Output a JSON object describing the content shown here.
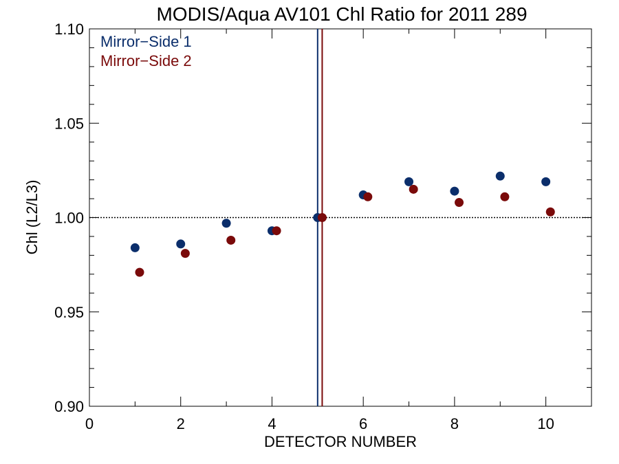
{
  "chart_data": {
    "type": "scatter",
    "title": "MODIS/Aqua AV101 Chl Ratio for 2011 289",
    "xlabel": "DETECTOR NUMBER",
    "ylabel": "Chl (L2/L3)",
    "xlim": [
      0,
      11
    ],
    "ylim": [
      0.9,
      1.1
    ],
    "xticks": [
      0,
      2,
      4,
      6,
      8,
      10
    ],
    "xtick_labels": [
      "0",
      "2",
      "4",
      "6",
      "8",
      "10"
    ],
    "yticks": [
      0.9,
      0.95,
      1.0,
      1.05,
      1.1
    ],
    "ytick_labels": [
      "0.90",
      "0.95",
      "1.00",
      "1.05",
      "1.10"
    ],
    "reference_line_y": 1.0,
    "legend_placement": "top-left",
    "series": [
      {
        "name": "Mirror−Side 1",
        "color": "#0b2e6b",
        "x": [
          1,
          2,
          3,
          4,
          5,
          6,
          7,
          8,
          9,
          10
        ],
        "y": [
          0.984,
          0.986,
          0.997,
          0.993,
          1.0,
          1.012,
          1.019,
          1.014,
          1.022,
          1.019
        ],
        "vline_x": 5.0
      },
      {
        "name": "Mirror−Side 2",
        "color": "#7a0a0a",
        "x": [
          1.1,
          2.1,
          3.1,
          4.1,
          5.1,
          6.1,
          7.1,
          8.1,
          9.1,
          10.1
        ],
        "y": [
          0.971,
          0.981,
          0.988,
          0.993,
          1.0,
          1.011,
          1.015,
          1.008,
          1.011,
          1.003
        ],
        "vline_x": 5.1
      }
    ]
  }
}
